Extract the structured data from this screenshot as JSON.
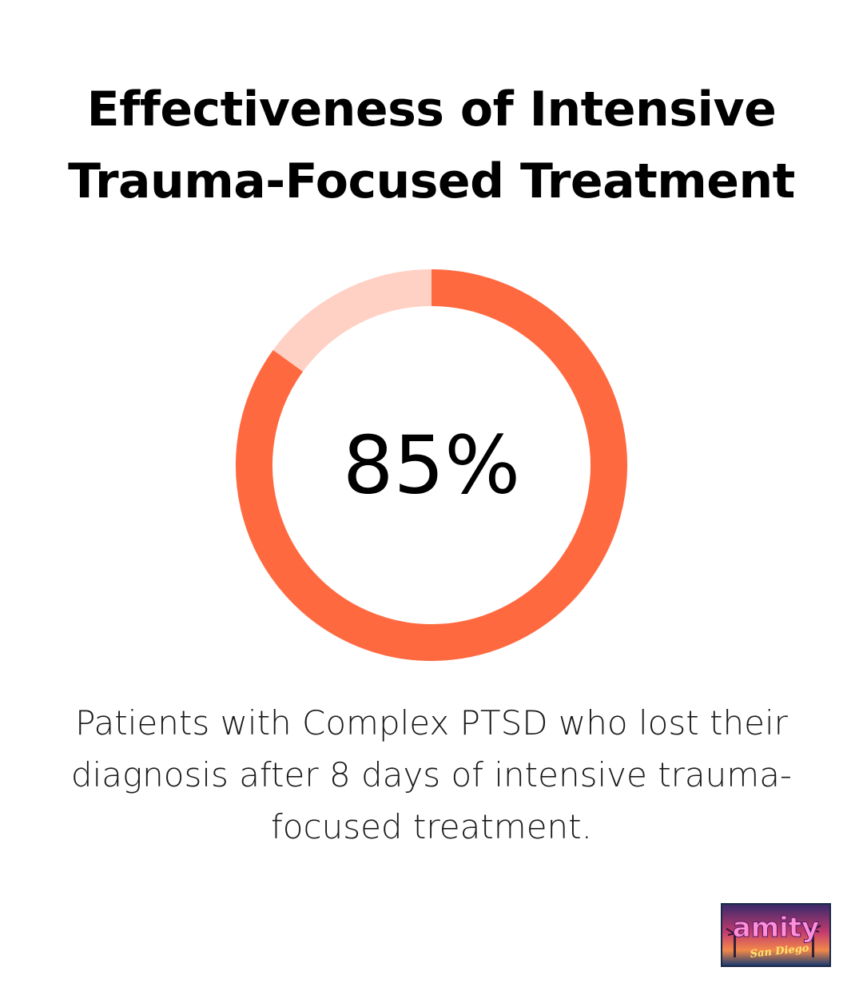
{
  "title_line1": "Effectiveness of Intensive",
  "title_line2": "Trauma-Focused Treatment",
  "caption": "Patients with Complex PTSD who lost their diagnosis after 8 days of intensive trauma-focused treatment.",
  "chart_data": {
    "type": "pie",
    "style": "donut",
    "value": 85,
    "max": 100,
    "center_label": "85%",
    "colors": {
      "filled": "#ff6940",
      "remaining": "#ffd1c4"
    }
  },
  "logo": {
    "text": "amity",
    "subtext": "San Diego"
  }
}
